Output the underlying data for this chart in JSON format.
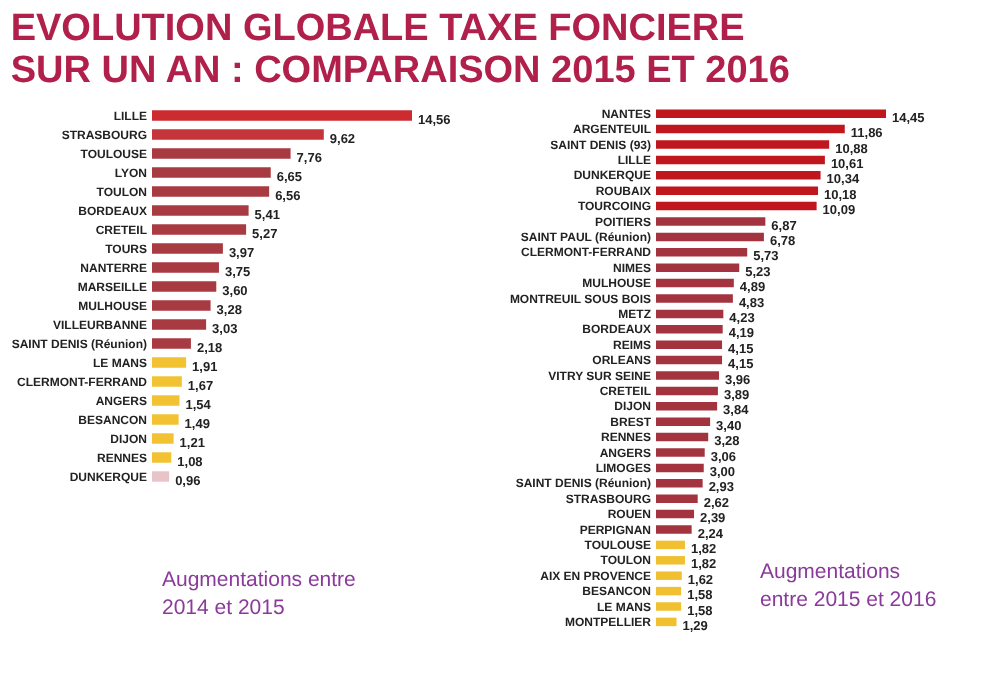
{
  "chart_data": [
    {
      "type": "bar",
      "orientation": "horizontal",
      "title": "EVOLUTION GLOBALE TAXE FONCIERE\nSUR UN AN : COMPARAISON 2015 ET 2016",
      "categories": [
        "LILLE",
        "STRASBOURG",
        "TOULOUSE",
        "LYON",
        "TOULON",
        "BORDEAUX",
        "CRETEIL",
        "TOURS",
        "NANTERRE",
        "MARSEILLE",
        "MULHOUSE",
        "VILLEURBANNE",
        "SAINT DENIS (Réunion)",
        "LE MANS",
        "CLERMONT-FERRAND",
        "ANGERS",
        "BESANCON",
        "DIJON",
        "RENNES",
        "DUNKERQUE"
      ],
      "values": [
        14.56,
        9.62,
        7.76,
        6.65,
        6.56,
        5.41,
        5.27,
        3.97,
        3.75,
        3.6,
        3.28,
        3.03,
        2.18,
        1.91,
        1.67,
        1.54,
        1.49,
        1.21,
        1.08,
        0.96
      ],
      "value_labels": [
        "14,56",
        "9,62",
        "7,76",
        "6,65",
        "6,56",
        "5,41",
        "5,27",
        "3,97",
        "3,75",
        "3,60",
        "3,28",
        "3,03",
        "2,18",
        "1,91",
        "1,67",
        "1,54",
        "1,49",
        "1,21",
        "1,08",
        "0,96"
      ],
      "colors": [
        "#cc2b30",
        "#c4343a",
        "#a83a42",
        "#a83a42",
        "#a83a42",
        "#a83a42",
        "#a83a42",
        "#a83a42",
        "#a83a42",
        "#a83a42",
        "#a83a42",
        "#a83a42",
        "#a83a42",
        "#f2c232",
        "#f2c232",
        "#f2c232",
        "#f2c232",
        "#f2c232",
        "#f2c232",
        "#e8c4c8"
      ],
      "annotations": [
        "Augmentations  entre\n2014 et 2015"
      ]
    },
    {
      "type": "bar",
      "orientation": "horizontal",
      "categories": [
        "NANTES",
        "ARGENTEUIL",
        "SAINT DENIS (93)",
        "LILLE",
        "DUNKERQUE",
        "ROUBAIX",
        "TOURCOING",
        "POITIERS",
        "SAINT PAUL (Réunion)",
        "CLERMONT-FERRAND",
        "NIMES",
        "MULHOUSE",
        "MONTREUIL SOUS BOIS",
        "METZ",
        "BORDEAUX",
        "REIMS",
        "ORLEANS",
        "VITRY SUR SEINE",
        "CRETEIL",
        "DIJON",
        "BREST",
        "RENNES",
        "ANGERS",
        "LIMOGES",
        "SAINT DENIS (Réunion)",
        "STRASBOURG",
        "ROUEN",
        "PERPIGNAN",
        "TOULOUSE",
        "TOULON",
        "AIX EN PROVENCE",
        "BESANCON",
        "LE MANS",
        "MONTPELLIER"
      ],
      "values": [
        14.45,
        11.86,
        10.88,
        10.61,
        10.34,
        10.18,
        10.09,
        6.87,
        6.78,
        5.73,
        5.23,
        4.89,
        4.83,
        4.23,
        4.19,
        4.15,
        4.15,
        3.96,
        3.89,
        3.84,
        3.4,
        3.28,
        3.06,
        3.0,
        2.93,
        2.62,
        2.39,
        2.24,
        1.82,
        1.82,
        1.62,
        1.58,
        1.58,
        1.29
      ],
      "value_labels": [
        "14,45",
        "11,86",
        "10,88",
        "10,61",
        "10,34",
        "10,18",
        "10,09",
        "6,87",
        "6,78",
        "5,73",
        "5,23",
        "4,89",
        "4,83",
        "4,23",
        "4,19",
        "4,15",
        "4,15",
        "3,96",
        "3,89",
        "3,84",
        "3,40",
        "3,28",
        "3,06",
        "3,00",
        "2,93",
        "2,62",
        "2,39",
        "2,24",
        "1,82",
        "1,82",
        "1,62",
        "1,58",
        "1,58",
        "1,29"
      ],
      "colors": [
        "#c0161e",
        "#c0161e",
        "#c0161e",
        "#c0161e",
        "#c0161e",
        "#c0161e",
        "#c0161e",
        "#a3343f",
        "#a3343f",
        "#a3343f",
        "#a3343f",
        "#a3343f",
        "#a3343f",
        "#a3343f",
        "#a3343f",
        "#a3343f",
        "#a3343f",
        "#a3343f",
        "#a3343f",
        "#a3343f",
        "#a3343f",
        "#a3343f",
        "#a3343f",
        "#a3343f",
        "#a3343f",
        "#a3343f",
        "#a3343f",
        "#a3343f",
        "#f0c030",
        "#f0c030",
        "#f0c030",
        "#f0c030",
        "#f0c030",
        "#f0c030"
      ],
      "annotations": [
        "Augmentations\nentre 2015 et 2016"
      ]
    }
  ]
}
